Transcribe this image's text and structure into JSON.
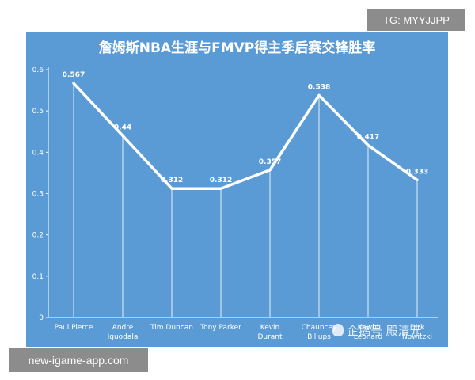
{
  "tags": {
    "top": "TG: MYYJJPP",
    "bottom": "new-igame-app.com"
  },
  "watermark": "企鹅号 殿清元",
  "chart_data": {
    "type": "line",
    "title": "詹姆斯NBA生涯与FMVP得主季后赛交锋胜率",
    "xlabel": "",
    "ylabel": "",
    "ylim": [
      0,
      0.6
    ],
    "yticks": [
      "0",
      "0.1",
      "0.2",
      "0.3",
      "0.4",
      "0.5",
      "0.6"
    ],
    "grid": false,
    "categories": [
      [
        "Paul Pierce"
      ],
      [
        "Andre",
        "Iguodala"
      ],
      [
        "Tim Duncan"
      ],
      [
        "Tony Parker"
      ],
      [
        "Kevin",
        "Durant"
      ],
      [
        "Chauncey",
        "Billups"
      ],
      [
        "Kawhi",
        "Leonard"
      ],
      [
        "Dirk",
        "Nowitzki"
      ]
    ],
    "series": [
      {
        "values": [
          0.567,
          0.44,
          0.312,
          0.312,
          0.357,
          0.538,
          0.417,
          0.333
        ],
        "labels": [
          "0.567",
          "0.44",
          "0.312",
          "0.312",
          "0.357",
          "0.538",
          "0.417",
          "0.333"
        ]
      }
    ],
    "colors": {
      "background": "#5b9bd5",
      "line": "#ffffff",
      "text": "#ffffff"
    }
  }
}
